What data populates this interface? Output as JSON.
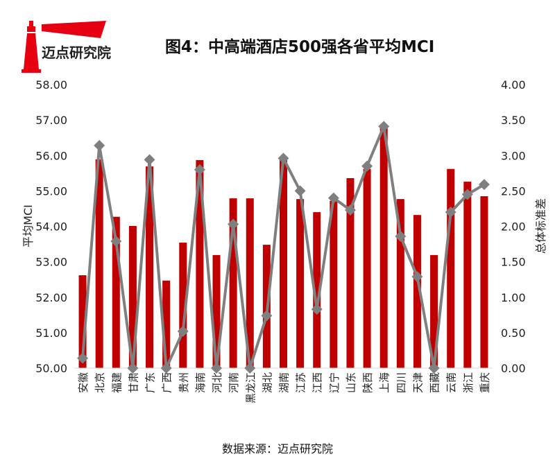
{
  "logo": {
    "text": "迈点研究院",
    "color": "#e60012"
  },
  "source": "数据来源：迈点研究院",
  "chart_data": {
    "type": "bar",
    "title": "图4：中高端酒店500强各省平均MCI",
    "xlabel": "",
    "ylabel": "平均MCI",
    "y2label": "总体标准差",
    "ylim": [
      50,
      58
    ],
    "y2lim": [
      0,
      4
    ],
    "yticks": [
      "50.00",
      "51.00",
      "52.00",
      "53.00",
      "54.00",
      "55.00",
      "56.00",
      "57.00",
      "58.00"
    ],
    "y2ticks": [
      "0.00",
      "0.50",
      "1.00",
      "1.50",
      "2.00",
      "2.50",
      "3.00",
      "3.50",
      "4.00"
    ],
    "grid": false,
    "categories": [
      "安徽",
      "北京",
      "福建",
      "甘肃",
      "广东",
      "广西",
      "贵州",
      "海南",
      "河北",
      "河南",
      "黑龙江",
      "湖北",
      "湖南",
      "江苏",
      "江西",
      "辽宁",
      "山东",
      "陕西",
      "上海",
      "四川",
      "天津",
      "西藏",
      "云南",
      "浙江",
      "重庆"
    ],
    "series": [
      {
        "name": "平均MCI",
        "type": "bar",
        "axis": "left",
        "color": "#c00000",
        "values": [
          52.62,
          55.89,
          54.27,
          54.01,
          55.69,
          52.47,
          53.54,
          55.87,
          53.19,
          54.79,
          54.79,
          53.48,
          55.93,
          54.77,
          54.4,
          54.72,
          55.36,
          55.62,
          56.81,
          54.77,
          54.32,
          53.19,
          55.62,
          55.26,
          54.85
        ]
      },
      {
        "name": "总体标准差",
        "type": "line",
        "axis": "right",
        "color": "#7f7f7f",
        "values": [
          0.14,
          3.14,
          1.79,
          0,
          2.94,
          0,
          0.52,
          2.8,
          0,
          2.03,
          0,
          0.74,
          2.96,
          2.5,
          0.83,
          2.4,
          2.23,
          2.85,
          3.41,
          1.86,
          1.29,
          0,
          2.2,
          2.45,
          2.59
        ]
      }
    ]
  }
}
